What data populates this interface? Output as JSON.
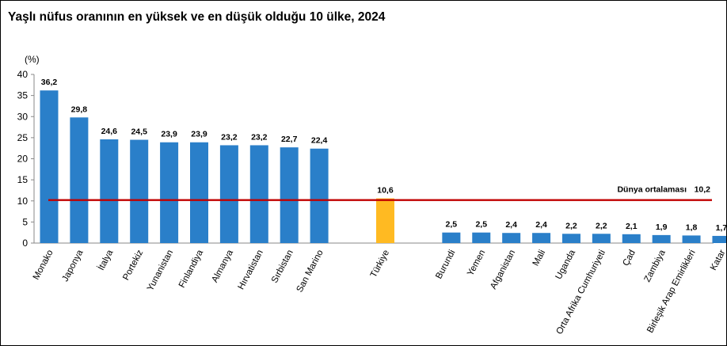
{
  "chart_data": {
    "type": "bar",
    "title": "Yaşlı nüfus oranının en yüksek ve en düşük olduğu 10 ülke, 2024",
    "ylabel": "(%)",
    "ylim": [
      0,
      40
    ],
    "yticks": [
      0,
      5,
      10,
      15,
      20,
      25,
      30,
      35,
      40
    ],
    "categories": [
      "Monako",
      "Japonya",
      "İtalya",
      "Portekiz",
      "Yunanistan",
      "Finlandiya",
      "Almanya",
      "Hırvatistan",
      "Sırbistan",
      "San Marino",
      "Türkiye",
      "Burundi",
      "Yemen",
      "Afganistan",
      "Mali",
      "Uganda",
      "Orta Afrika Cumhuriyeti",
      "Çad",
      "Zambiya",
      "Birleşik Arap Emirlikleri",
      "Katar"
    ],
    "values": [
      36.2,
      29.8,
      24.6,
      24.5,
      23.9,
      23.9,
      23.2,
      23.2,
      22.7,
      22.4,
      10.6,
      2.5,
      2.5,
      2.4,
      2.4,
      2.2,
      2.2,
      2.1,
      1.9,
      1.8,
      1.7
    ],
    "value_labels": [
      "36,2",
      "29,8",
      "24,6",
      "24,5",
      "23,9",
      "23,9",
      "23,2",
      "23,2",
      "22,7",
      "22,4",
      "10,6",
      "2,5",
      "2,5",
      "2,4",
      "2,4",
      "2,2",
      "2,2",
      "2,1",
      "1,9",
      "1,8",
      "1,7"
    ],
    "highlight_category": "Türkiye",
    "reference_line": {
      "label": "Dünya ortalaması",
      "value": 10.2,
      "value_label": "10,2",
      "color": "#c00000"
    },
    "colors": {
      "bar": "#2a7fc9",
      "highlight": "#ffba22",
      "axis": "#888888"
    },
    "grid": false,
    "legend": "none"
  }
}
